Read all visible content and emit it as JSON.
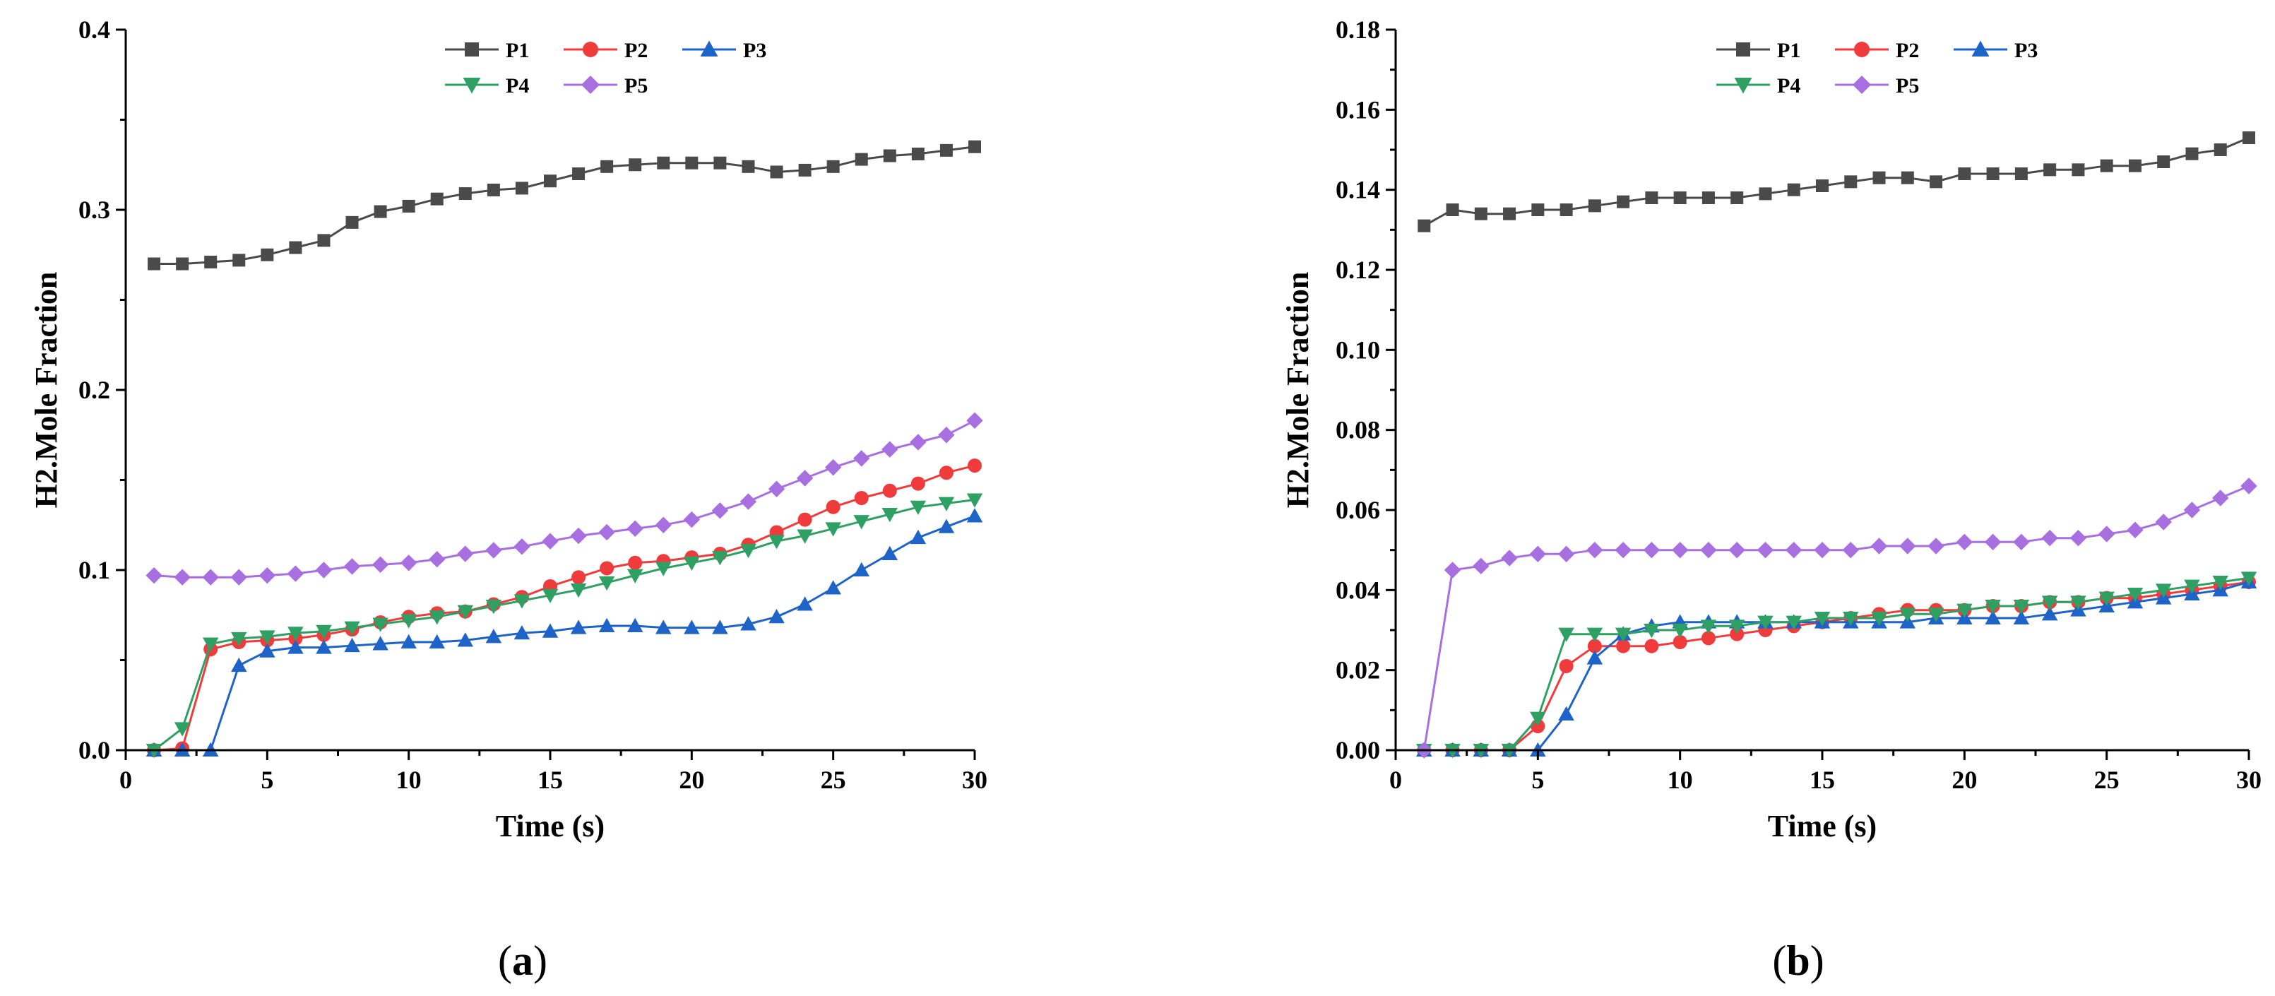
{
  "chart_data": [
    {
      "type": "line",
      "caption_letter": "a",
      "caption_open": "(",
      "caption_close": ")",
      "xlabel": "Time (s)",
      "ylabel": "H2.Mole Fraction",
      "xlim": [
        0,
        30
      ],
      "ylim": [
        0,
        0.4
      ],
      "xticks": [
        0,
        5,
        10,
        15,
        20,
        25,
        30
      ],
      "yticks": [
        0.0,
        0.1,
        0.2,
        0.3,
        0.4
      ],
      "ytick_labels": [
        "0.0",
        "0.1",
        "0.2",
        "0.3",
        "0.4"
      ],
      "x": [
        1,
        2,
        3,
        4,
        5,
        6,
        7,
        8,
        9,
        10,
        11,
        12,
        13,
        14,
        15,
        16,
        17,
        18,
        19,
        20,
        21,
        22,
        23,
        24,
        25,
        26,
        27,
        28,
        29,
        30
      ],
      "series": [
        {
          "name": "P1",
          "color": "#4a4a4a",
          "marker": "square",
          "values": [
            0.27,
            0.27,
            0.271,
            0.272,
            0.275,
            0.279,
            0.283,
            0.293,
            0.299,
            0.302,
            0.306,
            0.309,
            0.311,
            0.312,
            0.316,
            0.32,
            0.324,
            0.325,
            0.326,
            0.326,
            0.326,
            0.324,
            0.321,
            0.322,
            0.324,
            0.328,
            0.33,
            0.331,
            0.333,
            0.335
          ]
        },
        {
          "name": "P2",
          "color": "#ef3b3b",
          "marker": "circle",
          "values": [
            0.0,
            0.001,
            0.056,
            0.06,
            0.061,
            0.062,
            0.064,
            0.067,
            0.071,
            0.074,
            0.076,
            0.077,
            0.081,
            0.085,
            0.091,
            0.096,
            0.101,
            0.104,
            0.105,
            0.107,
            0.109,
            0.114,
            0.121,
            0.128,
            0.135,
            0.14,
            0.144,
            0.148,
            0.154,
            0.158
          ]
        },
        {
          "name": "P3",
          "color": "#1e63c8",
          "marker": "triangle-up",
          "values": [
            0.0,
            0.0,
            0.0,
            0.047,
            0.055,
            0.057,
            0.057,
            0.058,
            0.059,
            0.06,
            0.06,
            0.061,
            0.063,
            0.065,
            0.066,
            0.068,
            0.069,
            0.069,
            0.068,
            0.068,
            0.068,
            0.07,
            0.074,
            0.081,
            0.09,
            0.1,
            0.109,
            0.118,
            0.124,
            0.13
          ]
        },
        {
          "name": "P4",
          "color": "#2ea063",
          "marker": "triangle-down",
          "values": [
            0.0,
            0.012,
            0.059,
            0.062,
            0.063,
            0.065,
            0.066,
            0.068,
            0.07,
            0.072,
            0.074,
            0.077,
            0.08,
            0.083,
            0.086,
            0.089,
            0.093,
            0.097,
            0.101,
            0.104,
            0.107,
            0.111,
            0.116,
            0.119,
            0.123,
            0.127,
            0.131,
            0.135,
            0.137,
            0.139
          ]
        },
        {
          "name": "P5",
          "color": "#a86fe0",
          "marker": "diamond",
          "values": [
            0.097,
            0.096,
            0.096,
            0.096,
            0.097,
            0.098,
            0.1,
            0.102,
            0.103,
            0.104,
            0.106,
            0.109,
            0.111,
            0.113,
            0.116,
            0.119,
            0.121,
            0.123,
            0.125,
            0.128,
            0.133,
            0.138,
            0.145,
            0.151,
            0.157,
            0.162,
            0.167,
            0.171,
            0.175,
            0.183
          ]
        }
      ],
      "legend": "top-center"
    },
    {
      "type": "line",
      "caption_letter": "b",
      "caption_open": "(",
      "caption_close": ")",
      "xlabel": "Time (s)",
      "ylabel": "H2.Mole Fraction",
      "xlim": [
        0,
        30
      ],
      "ylim": [
        0,
        0.18
      ],
      "xticks": [
        0,
        5,
        10,
        15,
        20,
        25,
        30
      ],
      "yticks": [
        0,
        0.02,
        0.04,
        0.06,
        0.08,
        0.1,
        0.12,
        0.14,
        0.16,
        0.18
      ],
      "ytick_labels": [
        "0.00",
        "0.02",
        "0.04",
        "0.06",
        "0.08",
        "0.10",
        "0.12",
        "0.14",
        "0.16",
        "0.18"
      ],
      "x": [
        1,
        2,
        3,
        4,
        5,
        6,
        7,
        8,
        9,
        10,
        11,
        12,
        13,
        14,
        15,
        16,
        17,
        18,
        19,
        20,
        21,
        22,
        23,
        24,
        25,
        26,
        27,
        28,
        29,
        30
      ],
      "series": [
        {
          "name": "P1",
          "color": "#4a4a4a",
          "marker": "square",
          "values": [
            0.131,
            0.135,
            0.134,
            0.134,
            0.135,
            0.135,
            0.136,
            0.137,
            0.138,
            0.138,
            0.138,
            0.138,
            0.139,
            0.14,
            0.141,
            0.142,
            0.143,
            0.143,
            0.142,
            0.144,
            0.144,
            0.144,
            0.145,
            0.145,
            0.146,
            0.146,
            0.147,
            0.149,
            0.15,
            0.153
          ]
        },
        {
          "name": "P2",
          "color": "#ef3b3b",
          "marker": "circle",
          "values": [
            0.0,
            0.0,
            0.0,
            0.0,
            0.006,
            0.021,
            0.026,
            0.026,
            0.026,
            0.027,
            0.028,
            0.029,
            0.03,
            0.031,
            0.032,
            0.033,
            0.034,
            0.035,
            0.035,
            0.035,
            0.036,
            0.036,
            0.037,
            0.037,
            0.038,
            0.038,
            0.039,
            0.04,
            0.041,
            0.042
          ]
        },
        {
          "name": "P3",
          "color": "#1e63c8",
          "marker": "triangle-up",
          "values": [
            0.0,
            0.0,
            0.0,
            0.0,
            0.0,
            0.009,
            0.023,
            0.029,
            0.031,
            0.032,
            0.032,
            0.032,
            0.032,
            0.032,
            0.032,
            0.032,
            0.032,
            0.032,
            0.033,
            0.033,
            0.033,
            0.033,
            0.034,
            0.035,
            0.036,
            0.037,
            0.038,
            0.039,
            0.04,
            0.042
          ]
        },
        {
          "name": "P4",
          "color": "#2ea063",
          "marker": "triangle-down",
          "values": [
            0.0,
            0.0,
            0.0,
            0.0,
            0.008,
            0.029,
            0.029,
            0.029,
            0.03,
            0.03,
            0.031,
            0.031,
            0.032,
            0.032,
            0.033,
            0.033,
            0.033,
            0.034,
            0.034,
            0.035,
            0.036,
            0.036,
            0.037,
            0.037,
            0.038,
            0.039,
            0.04,
            0.041,
            0.042,
            0.043
          ]
        },
        {
          "name": "P5",
          "color": "#a86fe0",
          "marker": "diamond",
          "values": [
            0.0,
            0.045,
            0.046,
            0.048,
            0.049,
            0.049,
            0.05,
            0.05,
            0.05,
            0.05,
            0.05,
            0.05,
            0.05,
            0.05,
            0.05,
            0.05,
            0.051,
            0.051,
            0.051,
            0.052,
            0.052,
            0.052,
            0.053,
            0.053,
            0.054,
            0.055,
            0.057,
            0.06,
            0.063,
            0.066
          ]
        }
      ],
      "legend": "top-center"
    }
  ]
}
